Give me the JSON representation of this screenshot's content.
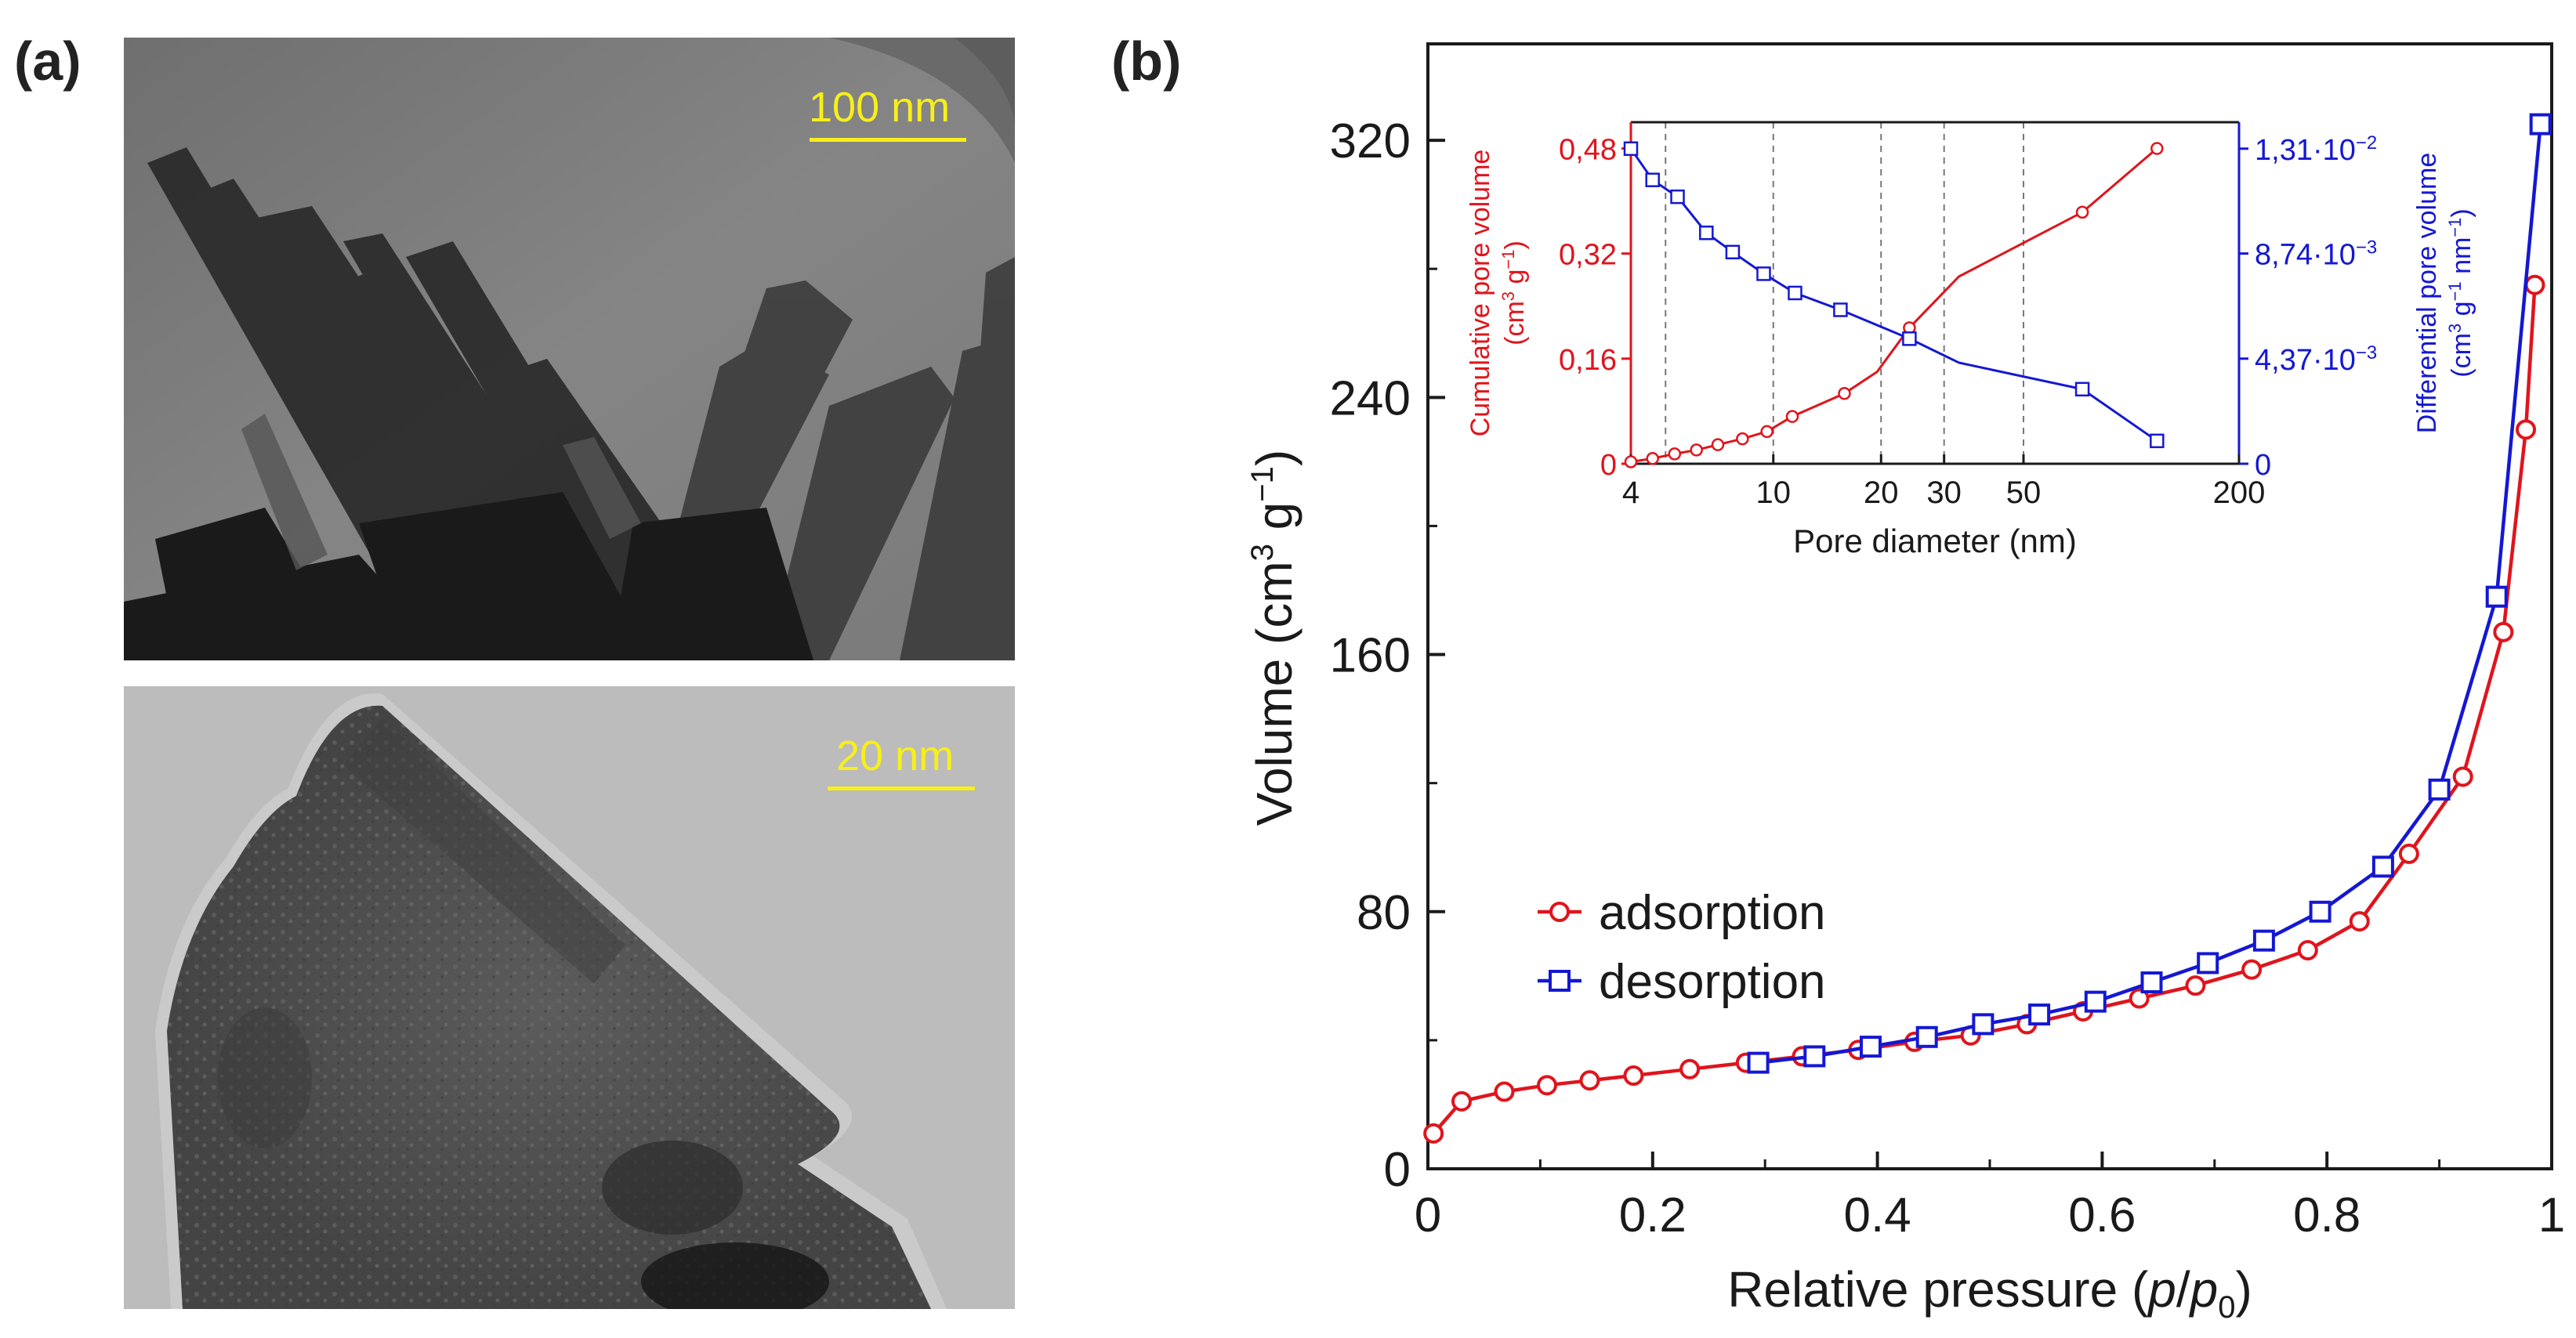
{
  "panels": {
    "a": {
      "label": "(a)",
      "images": [
        {
          "name": "tem-image-top",
          "scale_bar": "100 nm"
        },
        {
          "name": "tem-image-bottom",
          "scale_bar": "20 nm"
        }
      ]
    },
    "b": {
      "label": "(b)"
    }
  },
  "colors": {
    "red": "#e0141c",
    "blue": "#1418d2",
    "scale_bar": "#f7ef1a"
  },
  "chart_data": [
    {
      "type": "line",
      "name": "main-isotherm",
      "xlabel": "Relative pressure (p/p0)",
      "ylabel": "Volume (cm3 g-1)",
      "xlim": [
        0,
        1
      ],
      "ylim": [
        0,
        350
      ],
      "x_ticks": [
        0,
        0.2,
        0.4,
        0.6,
        0.8,
        1
      ],
      "x_tick_labels": [
        "0",
        "0.2",
        "0.4",
        "0.6",
        "0.8",
        "1"
      ],
      "y_ticks": [
        0,
        80,
        160,
        240,
        320
      ],
      "y_tick_labels": [
        "0",
        "80",
        "160",
        "240",
        "320"
      ],
      "legend": {
        "position": "lower-left",
        "entries": [
          "adsorption",
          "desorption"
        ]
      },
      "series": [
        {
          "name": "adsorption",
          "color": "#e0141c",
          "marker": "circle",
          "x": [
            0.005,
            0.03,
            0.068,
            0.106,
            0.144,
            0.183,
            0.233,
            0.283,
            0.333,
            0.383,
            0.433,
            0.483,
            0.533,
            0.583,
            0.633,
            0.683,
            0.733,
            0.783,
            0.829,
            0.873,
            0.921,
            0.957,
            0.977,
            0.985
          ],
          "y": [
            11,
            21,
            24,
            26,
            27.5,
            29,
            31,
            33,
            35,
            37,
            39.5,
            41.5,
            45,
            49,
            53,
            57,
            62,
            68,
            77,
            98,
            122,
            167,
            230,
            275
          ]
        },
        {
          "name": "desorption",
          "color": "#1418d2",
          "marker": "square",
          "x": [
            0.294,
            0.344,
            0.394,
            0.444,
            0.494,
            0.544,
            0.594,
            0.644,
            0.694,
            0.744,
            0.794,
            0.85,
            0.9,
            0.951,
            0.99
          ],
          "y": [
            33,
            35,
            38,
            41,
            45,
            48,
            52,
            58,
            64,
            71,
            80,
            94,
            118,
            178,
            325
          ]
        }
      ]
    },
    {
      "type": "line",
      "name": "inset-pore-distribution",
      "xlabel": "Pore diameter (nm)",
      "ylabel_left": "Cumulative pore volume (cm3 g-1)",
      "ylabel_right": "Differential pore volume (cm3 g-1 nm-1)",
      "x_scale": "log",
      "xlim": [
        4,
        200
      ],
      "x_ticks": [
        4,
        10,
        20,
        30,
        50,
        200
      ],
      "x_tick_labels": [
        "4",
        "10",
        "20",
        "30",
        "50",
        "200"
      ],
      "y_left_lim": [
        0,
        0.52
      ],
      "y_left_ticks": [
        0,
        0.16,
        0.32,
        0.48
      ],
      "y_left_tick_labels": [
        "0",
        "0,16",
        "0,32",
        "0,48"
      ],
      "y_right_lim": [
        0,
        0.0142
      ],
      "y_right_ticks": [
        0,
        0.00437,
        0.00874,
        0.0131
      ],
      "y_right_tick_labels": [
        "0",
        "4,37·10",
        "8,74·10",
        "1,31·10"
      ],
      "y_right_tick_exponents": [
        "",
        "−3",
        "−3",
        "−2"
      ],
      "grid_x": [
        5,
        10,
        20,
        30,
        50
      ],
      "series": [
        {
          "name": "cumulative",
          "axis": "left",
          "color": "#e0141c",
          "marker": "circle",
          "x": [
            4,
            4.6,
            5.3,
            6.1,
            7,
            8.2,
            9.6,
            11.3,
            15.8,
            24,
            73,
            118
          ],
          "y": [
            0.003,
            0.008,
            0.015,
            0.021,
            0.029,
            0.038,
            0.049,
            0.072,
            0.107,
            0.207,
            0.383,
            0.48
          ],
          "line_x": [
            4,
            4.6,
            5.3,
            6.1,
            7,
            8.2,
            9.6,
            11.3,
            15.8,
            19.5,
            24,
            33,
            73,
            118
          ],
          "line_y": [
            0.003,
            0.008,
            0.015,
            0.021,
            0.029,
            0.038,
            0.049,
            0.072,
            0.107,
            0.14,
            0.207,
            0.285,
            0.383,
            0.48
          ]
        },
        {
          "name": "differential",
          "axis": "right",
          "color": "#1418d2",
          "marker": "square",
          "x": [
            4,
            4.6,
            5.4,
            6.5,
            7.7,
            9.4,
            11.5,
            15.4,
            24,
            73,
            118
          ],
          "y": [
            0.0131,
            0.0118,
            0.0111,
            0.0096,
            0.0088,
            0.0079,
            0.0071,
            0.0064,
            0.0052,
            0.0031,
            0.00095
          ],
          "line_x": [
            4,
            4.6,
            5.4,
            6.5,
            7.7,
            9.4,
            11.5,
            15.4,
            24,
            33,
            73,
            118
          ],
          "line_y": [
            0.0131,
            0.0118,
            0.0111,
            0.0096,
            0.0088,
            0.0079,
            0.0071,
            0.0064,
            0.0052,
            0.0042,
            0.0031,
            0.00095
          ]
        }
      ]
    }
  ]
}
